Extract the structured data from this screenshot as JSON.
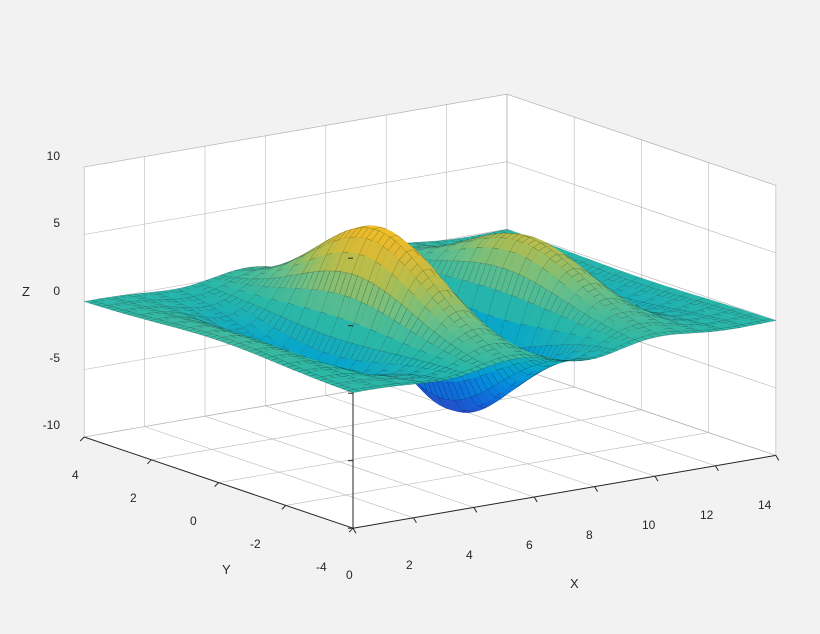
{
  "surface_chart": {
    "type": "surface3d",
    "xlabel": "X",
    "ylabel": "Y",
    "zlabel": "Z",
    "xlim": [
      0,
      14
    ],
    "ylim": [
      -4,
      4
    ],
    "zlim": [
      -10,
      10
    ],
    "xtick_positions": [
      0,
      2,
      4,
      6,
      8,
      10,
      12,
      14
    ],
    "xtick_labels": [
      "0",
      "2",
      "4",
      "6",
      "8",
      "10",
      "12",
      "14"
    ],
    "ytick_positions": [
      -4,
      -2,
      0,
      2,
      4
    ],
    "ytick_labels": [
      "-4",
      "-2",
      "0",
      "2",
      "4"
    ],
    "ztick_positions": [
      -10,
      -5,
      0,
      5,
      10
    ],
    "ztick_labels": [
      "-10",
      "-5",
      "0",
      "5",
      "10"
    ],
    "label_fontsize": 13,
    "tick_fontsize": 12,
    "background_color": "#f2f2f2",
    "axis_box_fill": "#ffffff",
    "grid_color": "#b8b8b8",
    "edge_color": "#262626",
    "view_azimuth": -37.5,
    "view_elevation": 30,
    "colormap": "parula",
    "colormap_stops": [
      {
        "t": 0.0,
        "c": "#352a87"
      },
      {
        "t": 0.1,
        "c": "#3342bf"
      },
      {
        "t": 0.2,
        "c": "#1165d8"
      },
      {
        "t": 0.3,
        "c": "#068ddd"
      },
      {
        "t": 0.4,
        "c": "#08a7c9"
      },
      {
        "t": 0.5,
        "c": "#29b7a8"
      },
      {
        "t": 0.6,
        "c": "#6abf88"
      },
      {
        "t": 0.7,
        "c": "#b3bd4e"
      },
      {
        "t": 0.8,
        "c": "#e6b92e"
      },
      {
        "t": 0.9,
        "c": "#fbcc1c"
      },
      {
        "t": 1.0,
        "c": "#f9fb0e"
      }
    ],
    "surface_equation": "Z = 8 * exp(-((X-7)^2)/18 - (Y^2)/6) * cos(1.2*X)",
    "x_grid": {
      "start": 0,
      "stop": 14,
      "count": 60
    },
    "y_grid": {
      "start": -4,
      "stop": 4,
      "count": 50
    },
    "mesh_line_color": "#000000",
    "mesh_line_alpha": 0.35,
    "mesh_stride_x": 3,
    "mesh_stride_y": 3
  }
}
